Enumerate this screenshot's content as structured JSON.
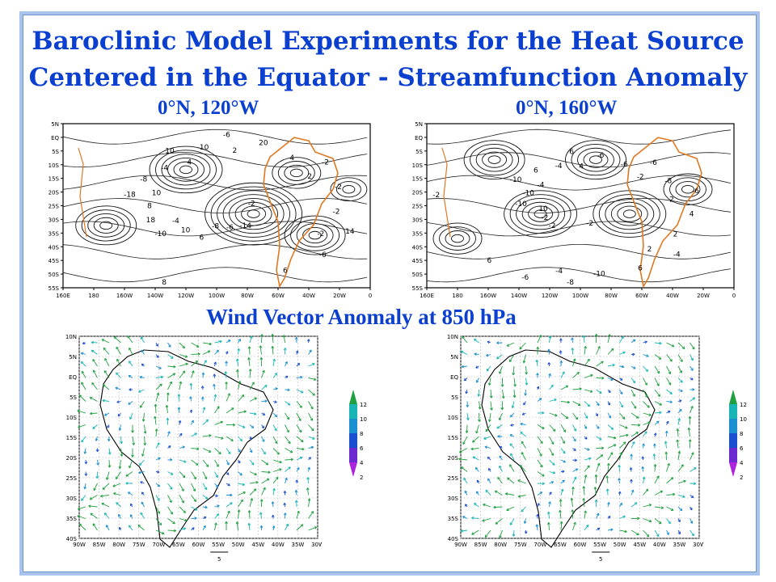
{
  "header": {
    "title_line1": "Baroclinic Model Experiments for the Heat Source",
    "title_line2": "Centered in the Equator - Streamfunction Anomaly",
    "left_case": "0°N, 120°W",
    "right_case": "0°N, 160°W",
    "wind_title": "Wind Vector Anomaly at 850 hPa"
  },
  "stream_axes": {
    "y_ticks": [
      "5N",
      "EQ",
      "5S",
      "10S",
      "15S",
      "20S",
      "25S",
      "30S",
      "35S",
      "40S",
      "45S",
      "50S",
      "55S"
    ],
    "x_ticks": [
      "160E",
      "180",
      "160W",
      "140W",
      "120W",
      "100W",
      "80W",
      "60W",
      "40W",
      "20W",
      "0"
    ]
  },
  "stream_left": {
    "labels": [
      "-2",
      "-10",
      "-6",
      "-14",
      "-18",
      "-2",
      "6",
      "10",
      "14",
      "18",
      "20",
      "-6",
      "-8",
      "-2",
      "10",
      "-10",
      "-6",
      "8",
      "4",
      "-8",
      "-4",
      "-2",
      "-4",
      "2",
      "6",
      "10",
      "2",
      "8",
      "4",
      "-2"
    ]
  },
  "stream_right": {
    "labels": [
      "-2",
      "-10",
      "-6",
      "-2",
      "6",
      "-4",
      "-10",
      "-6",
      "-8",
      "6",
      "4",
      "-2",
      "-6",
      "6",
      "-10",
      "-8",
      "-6",
      "-4",
      "2",
      "10",
      "-6",
      "-10",
      "-4",
      "2",
      "6",
      "4",
      "2",
      "-2",
      "-2",
      "-4"
    ]
  },
  "wind_axes": {
    "y_ticks": [
      "10N",
      "5N",
      "EQ",
      "5S",
      "10S",
      "15S",
      "20S",
      "25S",
      "30S",
      "35S",
      "40S"
    ],
    "x_ticks": [
      "90W",
      "85W",
      "80W",
      "75W",
      "70W",
      "65W",
      "60W",
      "55W",
      "50W",
      "45W",
      "40W",
      "35W",
      "30W"
    ],
    "ref_vector": "5"
  },
  "colorbar": {
    "labels": [
      "12",
      "10",
      "8",
      "6",
      "4",
      "2"
    ],
    "colors": [
      "#20a040",
      "#19b5b5",
      "#1a8fd0",
      "#1a4fd0",
      "#6a2ad0",
      "#b020e0"
    ]
  },
  "colors": {
    "title": "#0a3fd0",
    "coast": "#e07820",
    "frame": "#a9c4ec"
  }
}
